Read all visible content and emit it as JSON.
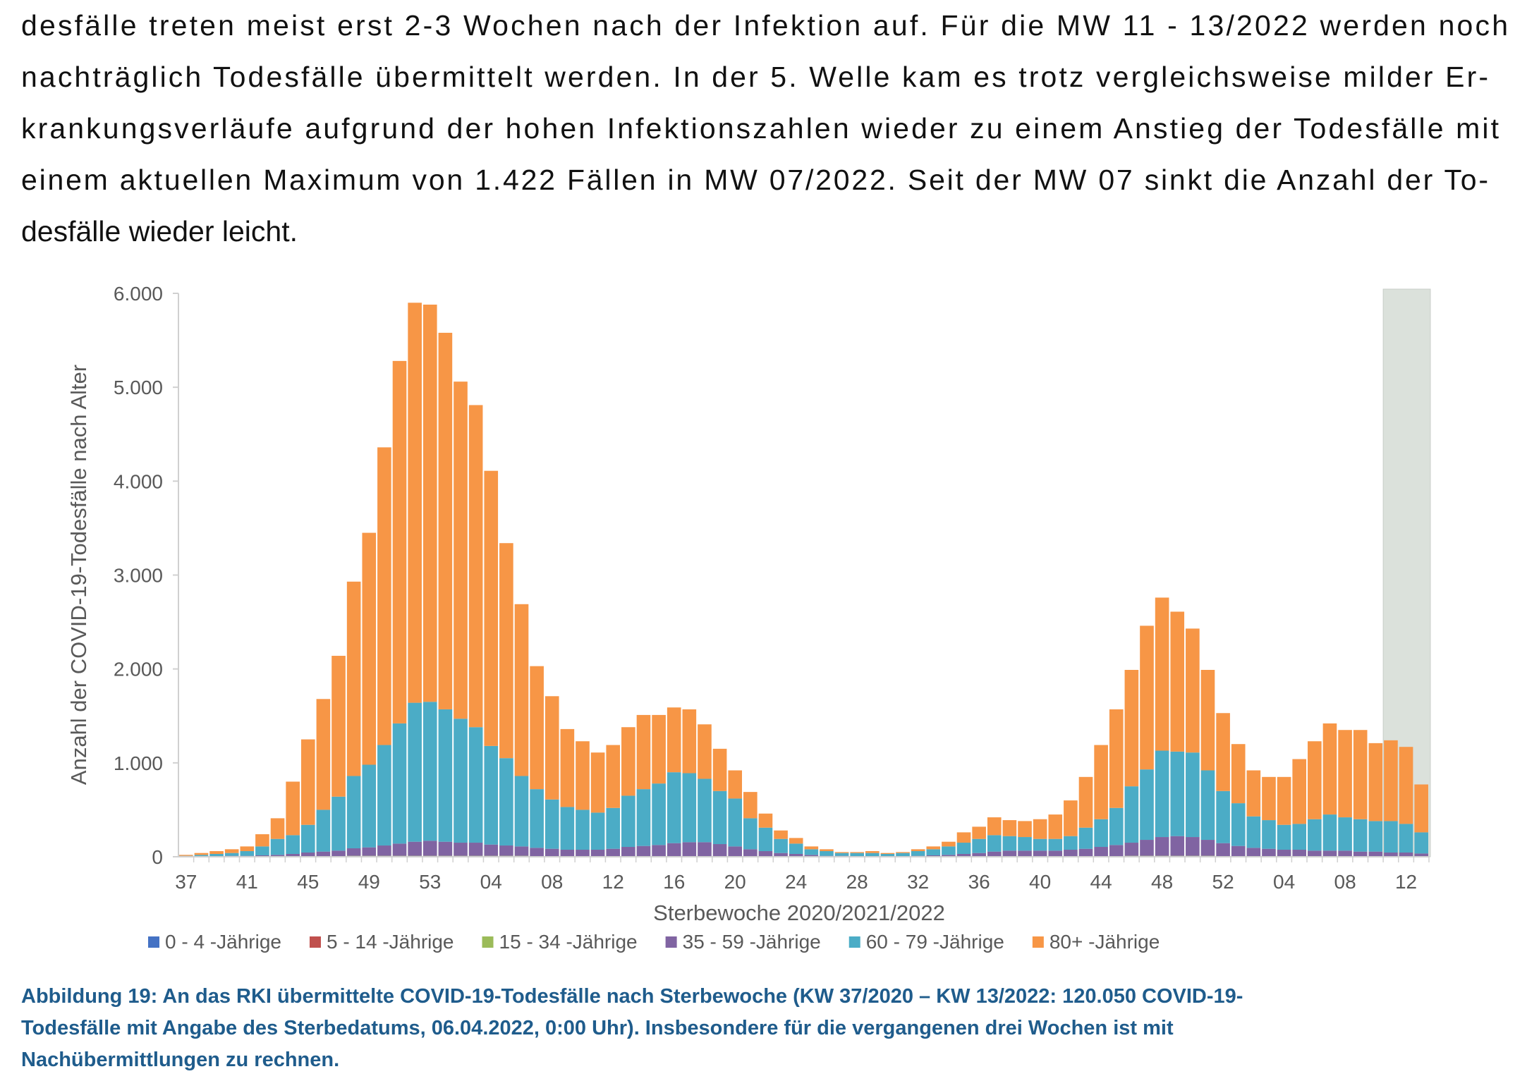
{
  "text": {
    "lines": [
      "desfälle treten meist erst 2-3 Wochen nach der Infektion auf. Für die MW 11 - 13/2022 werden noch",
      "nachträglich Todesfälle übermittelt werden. In der 5. Welle kam es trotz vergleichsweise milder Er-",
      "krankungsverläufe aufgrund der hohen Infektionszahlen wieder zu einem Anstieg der Todesfälle mit",
      "einem aktuellen Maximum von 1.422 Fällen in MW 07/2022. Seit der MW 07 sinkt die Anzahl der To-",
      "desfälle wieder leicht."
    ]
  },
  "chart_data": {
    "type": "bar",
    "stacked": true,
    "x_label": "Sterbewoche 2020/2021/2022",
    "y_label": "Anzahl der COVID-19-Todesfälle nach Alter",
    "categories": [
      "37",
      null,
      null,
      null,
      "41",
      null,
      null,
      null,
      "45",
      null,
      null,
      null,
      "49",
      null,
      null,
      null,
      "53",
      null,
      null,
      null,
      "04",
      null,
      null,
      null,
      "08",
      null,
      null,
      null,
      "12",
      null,
      null,
      null,
      "16",
      null,
      null,
      null,
      "20",
      null,
      null,
      null,
      "24",
      null,
      null,
      null,
      "28",
      null,
      null,
      null,
      "32",
      null,
      null,
      null,
      "36",
      null,
      null,
      null,
      "40",
      null,
      null,
      null,
      "44",
      null,
      null,
      null,
      "48",
      null,
      null,
      null,
      "52",
      null,
      null,
      null,
      "04",
      null,
      null,
      null,
      "08",
      null,
      null,
      null,
      "12",
      null
    ],
    "series": [
      {
        "name": "0 - 4 -Jährige",
        "color": "#4472c4",
        "values": [
          0,
          0,
          0,
          0,
          0,
          0,
          0,
          0,
          0,
          0,
          0,
          0,
          0,
          0,
          0,
          0,
          0,
          0,
          0,
          0,
          0,
          0,
          0,
          0,
          0,
          0,
          0,
          0,
          0,
          0,
          0,
          0,
          0,
          0,
          0,
          0,
          0,
          0,
          0,
          0,
          0,
          0,
          0,
          0,
          0,
          0,
          0,
          0,
          0,
          0,
          0,
          0,
          0,
          0,
          0,
          0,
          0,
          0,
          0,
          0,
          0,
          0,
          0,
          0,
          0,
          0,
          0,
          0,
          0,
          0,
          0,
          0,
          0,
          0,
          0,
          0,
          0,
          0,
          0,
          0,
          0,
          0
        ]
      },
      {
        "name": "5 - 14 -Jährige",
        "color": "#c0504d",
        "values": [
          0,
          0,
          0,
          0,
          0,
          0,
          0,
          0,
          0,
          0,
          0,
          0,
          0,
          0,
          0,
          0,
          0,
          0,
          0,
          0,
          0,
          0,
          0,
          0,
          0,
          0,
          0,
          0,
          0,
          0,
          0,
          0,
          0,
          0,
          0,
          0,
          0,
          0,
          0,
          0,
          0,
          0,
          0,
          0,
          0,
          0,
          0,
          0,
          0,
          0,
          0,
          0,
          0,
          0,
          0,
          0,
          0,
          0,
          0,
          0,
          0,
          0,
          0,
          0,
          0,
          0,
          0,
          0,
          0,
          0,
          0,
          0,
          0,
          0,
          0,
          0,
          0,
          0,
          0,
          0,
          0,
          0
        ]
      },
      {
        "name": "15 - 34 -Jährige",
        "color": "#9bbb59",
        "values": [
          0,
          0,
          0,
          0,
          0,
          0,
          0,
          0,
          5,
          5,
          5,
          10,
          10,
          10,
          10,
          10,
          10,
          10,
          10,
          10,
          10,
          10,
          10,
          5,
          5,
          5,
          5,
          5,
          5,
          5,
          5,
          5,
          5,
          5,
          5,
          5,
          0,
          0,
          0,
          0,
          0,
          0,
          0,
          0,
          0,
          0,
          0,
          0,
          0,
          0,
          0,
          0,
          0,
          5,
          5,
          5,
          5,
          5,
          5,
          5,
          5,
          5,
          10,
          10,
          10,
          10,
          10,
          10,
          5,
          5,
          5,
          5,
          5,
          5,
          5,
          5,
          5,
          5,
          5,
          5,
          5,
          5
        ]
      },
      {
        "name": "35 - 59 -Jährige",
        "color": "#8064a2",
        "values": [
          0,
          5,
          5,
          10,
          10,
          15,
          20,
          30,
          40,
          50,
          60,
          80,
          90,
          110,
          130,
          150,
          160,
          150,
          140,
          140,
          120,
          110,
          100,
          90,
          80,
          70,
          70,
          70,
          80,
          100,
          110,
          120,
          140,
          150,
          150,
          130,
          110,
          80,
          60,
          40,
          30,
          20,
          10,
          10,
          5,
          5,
          5,
          5,
          10,
          15,
          20,
          30,
          40,
          50,
          60,
          60,
          60,
          60,
          70,
          80,
          100,
          120,
          140,
          170,
          200,
          210,
          200,
          170,
          140,
          110,
          90,
          80,
          70,
          70,
          60,
          60,
          60,
          50,
          50,
          40,
          40,
          30
        ]
      },
      {
        "name": "60 - 79 -Jährige",
        "color": "#4bacc6",
        "values": [
          10,
          15,
          25,
          30,
          50,
          95,
          170,
          200,
          295,
          445,
          575,
          770,
          880,
          1070,
          1280,
          1480,
          1480,
          1410,
          1320,
          1230,
          1050,
          930,
          750,
          625,
          525,
          455,
          425,
          395,
          435,
          545,
          605,
          655,
          755,
          735,
          675,
          565,
          510,
          330,
          250,
          150,
          110,
          60,
          50,
          30,
          35,
          35,
          25,
          35,
          50,
          65,
          90,
          120,
          150,
          175,
          155,
          145,
          125,
          125,
          145,
          225,
          295,
          395,
          600,
          750,
          920,
          900,
          900,
          740,
          555,
          455,
          335,
          305,
          265,
          275,
          335,
          385,
          355,
          345,
          325,
          335,
          305,
          225
        ]
      },
      {
        "name": "80+ -Jährige",
        "color": "#f79646",
        "values": [
          10,
          20,
          30,
          40,
          50,
          130,
          220,
          570,
          910,
          1180,
          1500,
          2070,
          2470,
          3170,
          3860,
          4260,
          4230,
          4010,
          3590,
          3430,
          2930,
          2290,
          1830,
          1310,
          1100,
          830,
          730,
          640,
          670,
          730,
          790,
          730,
          690,
          680,
          580,
          450,
          300,
          280,
          150,
          90,
          60,
          30,
          20,
          10,
          10,
          20,
          10,
          10,
          20,
          30,
          50,
          110,
          130,
          190,
          170,
          170,
          210,
          260,
          380,
          540,
          790,
          1050,
          1240,
          1530,
          1630,
          1490,
          1320,
          1070,
          830,
          630,
          490,
          460,
          510,
          690,
          830,
          970,
          930,
          950,
          830,
          860,
          820,
          510
        ]
      }
    ],
    "ylim": [
      0,
      6000
    ],
    "yticks": [
      0,
      {
        "value": 1000,
        "label": "1.000"
      },
      {
        "value": 2000,
        "label": "2.000"
      },
      {
        "value": 3000,
        "label": "3.000"
      },
      {
        "value": 4000,
        "label": "4.000"
      },
      {
        "value": 5000,
        "label": "5.000"
      },
      {
        "value": 6000,
        "label": "6.000"
      }
    ],
    "grid": false,
    "legend": "bottom",
    "highlight_last": 3,
    "highlight_color": "#dbe1db"
  },
  "caption": {
    "lines": [
      "Abbildung 19: An das RKI übermittelte COVID-19-Todesfälle nach Sterbewoche (KW 37/2020 – KW 13/2022: 120.050 COVID-19-",
      "Todesfälle mit Angabe des Sterbedatums, 06.04.2022, 0:00 Uhr). Insbesondere für die vergangenen drei Wochen ist mit",
      "Nachübermittlungen zu rechnen."
    ]
  }
}
